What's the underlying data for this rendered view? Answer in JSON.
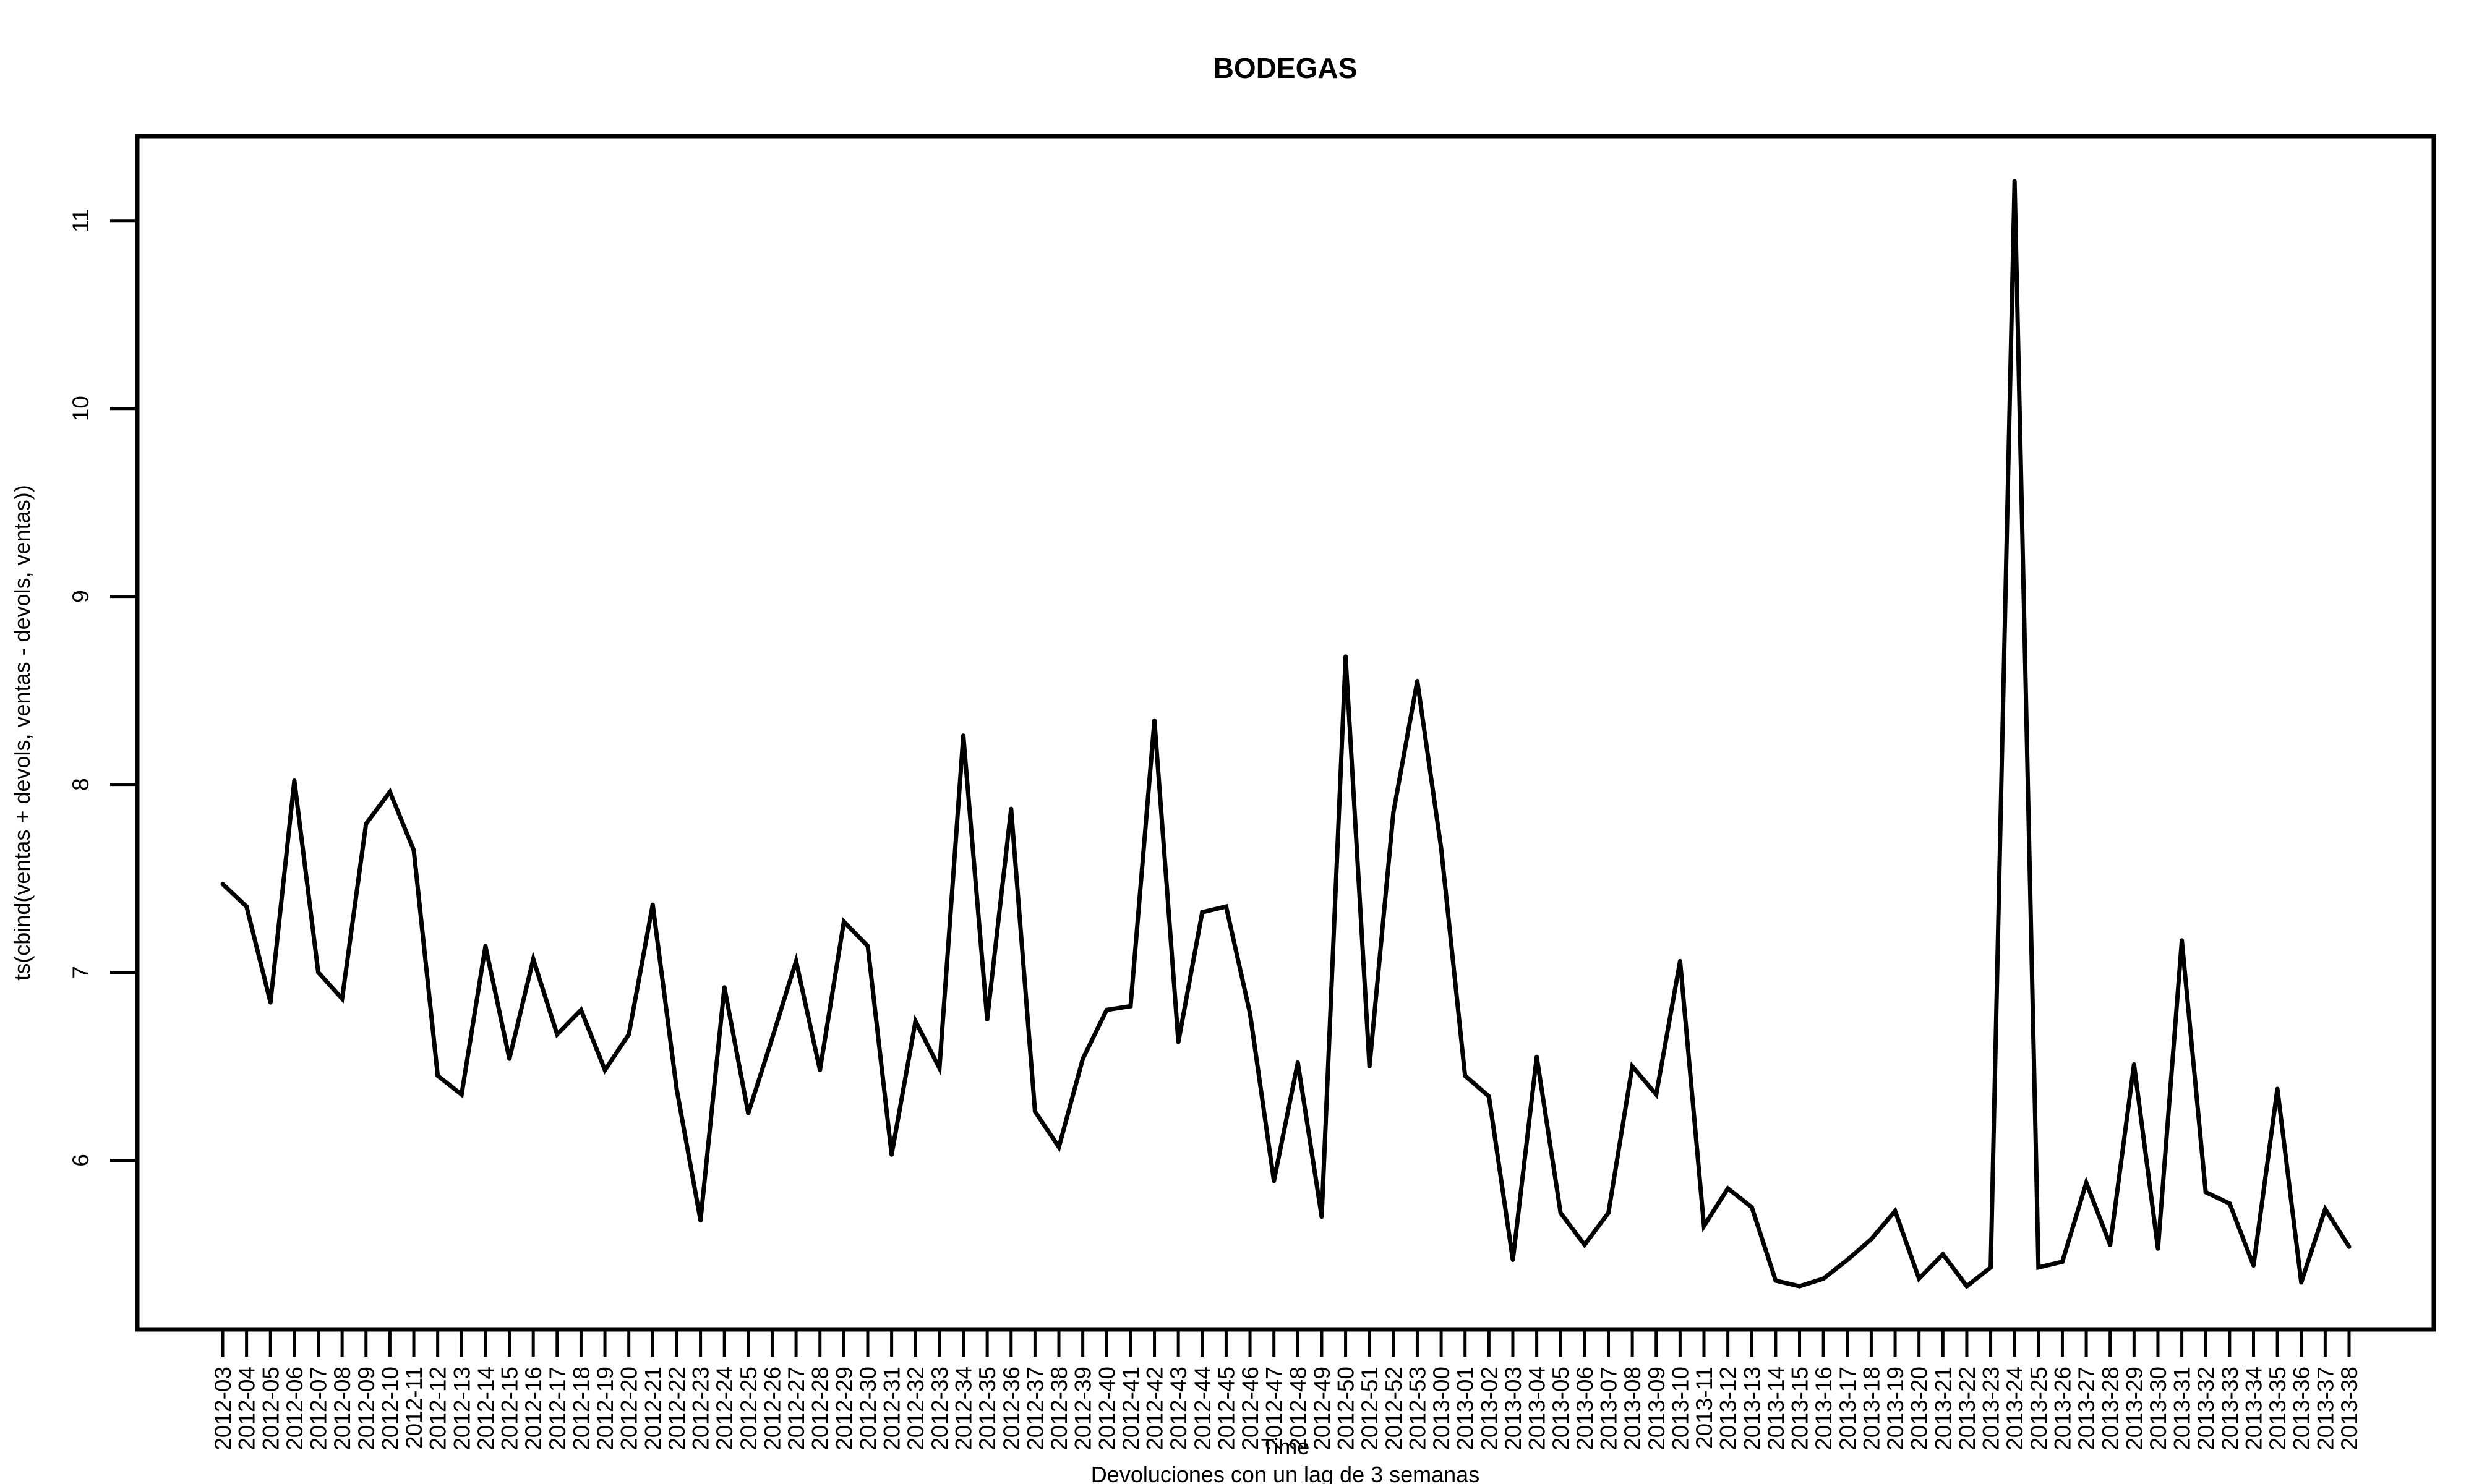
{
  "chart_data": {
    "type": "line",
    "title": "BODEGAS",
    "xlabel": "Time",
    "subtitle": "Devoluciones con un lag de 3 semanas",
    "ylabel": "ts(cbind(ventas + devols, ventas - devols, ventas))",
    "ylim": [
      5.1,
      11.45
    ],
    "yticks": [
      6,
      7,
      8,
      9,
      10,
      11
    ],
    "grid": false,
    "categories": [
      "2012-03",
      "2012-04",
      "2012-05",
      "2012-06",
      "2012-07",
      "2012-08",
      "2012-09",
      "2012-10",
      "2012-11",
      "2012-12",
      "2012-13",
      "2012-14",
      "2012-15",
      "2012-16",
      "2012-17",
      "2012-18",
      "2012-19",
      "2012-20",
      "2012-21",
      "2012-22",
      "2012-23",
      "2012-24",
      "2012-25",
      "2012-26",
      "2012-27",
      "2012-28",
      "2012-29",
      "2012-30",
      "2012-31",
      "2012-32",
      "2012-33",
      "2012-34",
      "2012-35",
      "2012-36",
      "2012-37",
      "2012-38",
      "2012-39",
      "2012-40",
      "2012-41",
      "2012-42",
      "2012-43",
      "2012-44",
      "2012-45",
      "2012-46",
      "2012-47",
      "2012-48",
      "2012-49",
      "2012-50",
      "2012-51",
      "2012-52",
      "2012-53",
      "2013-00",
      "2013-01",
      "2013-02",
      "2013-03",
      "2013-04",
      "2013-05",
      "2013-06",
      "2013-07",
      "2013-08",
      "2013-09",
      "2013-10",
      "2013-11",
      "2013-12",
      "2013-13",
      "2013-14",
      "2013-15",
      "2013-16",
      "2013-17",
      "2013-18",
      "2013-19",
      "2013-20",
      "2013-21",
      "2013-22",
      "2013-23",
      "2013-24",
      "2013-25",
      "2013-26",
      "2013-27",
      "2013-28",
      "2013-29",
      "2013-30",
      "2013-31",
      "2013-32",
      "2013-33",
      "2013-34",
      "2013-35",
      "2013-36",
      "2013-37",
      "2013-38"
    ],
    "series": [
      {
        "name": "ventas",
        "color": "#000000",
        "values": [
          7.47,
          7.35,
          6.84,
          8.02,
          7.0,
          6.86,
          7.79,
          7.96,
          7.65,
          6.45,
          6.35,
          7.14,
          6.54,
          7.07,
          6.67,
          6.8,
          6.48,
          6.67,
          7.36,
          6.38,
          5.68,
          6.92,
          6.25,
          6.65,
          7.06,
          6.48,
          7.27,
          7.14,
          6.03,
          6.74,
          6.49,
          8.26,
          6.75,
          7.87,
          6.26,
          6.07,
          6.54,
          6.8,
          6.82,
          8.34,
          6.63,
          7.32,
          7.35,
          6.78,
          5.89,
          6.52,
          5.7,
          8.68,
          6.5,
          7.85,
          8.55,
          7.66,
          6.45,
          6.34,
          5.47,
          6.55,
          5.72,
          5.55,
          5.72,
          6.5,
          6.35,
          7.06,
          5.65,
          5.85,
          5.75,
          5.36,
          5.33,
          5.37,
          5.47,
          5.58,
          5.73,
          5.37,
          5.5,
          5.33,
          5.43,
          11.21,
          5.43,
          5.46,
          5.88,
          5.55,
          6.51,
          5.53,
          7.17,
          5.83,
          5.77,
          5.44,
          6.38,
          5.35,
          5.74,
          5.54
        ]
      }
    ]
  }
}
